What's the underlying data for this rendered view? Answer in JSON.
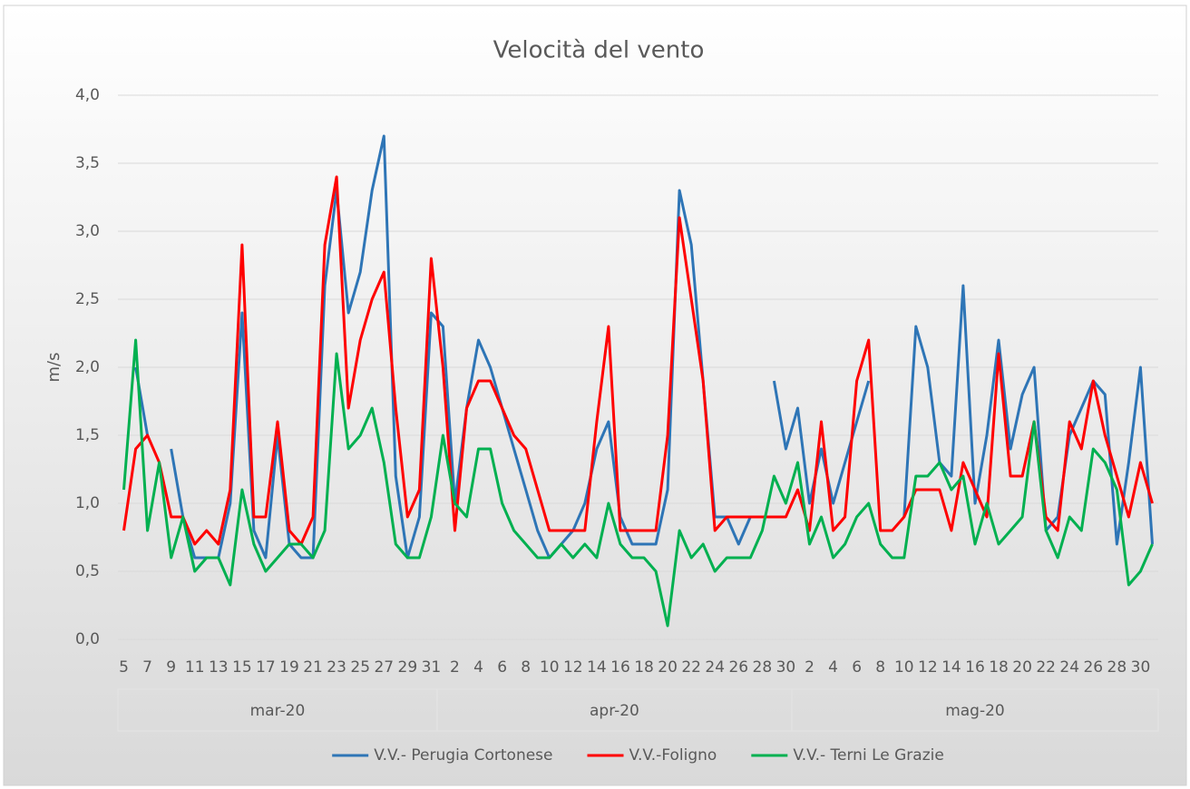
{
  "chart_data": {
    "type": "line",
    "title": "Velocità del vento",
    "y_label": "m/s",
    "categories": [
      "5",
      null,
      "7",
      null,
      "9",
      null,
      "11",
      null,
      "13",
      null,
      "15",
      null,
      "17",
      null,
      "19",
      null,
      "21",
      null,
      "23",
      null,
      "25",
      null,
      "27",
      null,
      "29",
      null,
      "31",
      null,
      "2",
      null,
      "4",
      null,
      "6",
      null,
      "8",
      null,
      "10",
      null,
      "12",
      null,
      "14",
      null,
      "16",
      null,
      "18",
      null,
      "20",
      null,
      "22",
      null,
      "24",
      null,
      "26",
      null,
      "28",
      null,
      "30",
      null,
      "2",
      null,
      "4",
      null,
      "6",
      null,
      "8",
      null,
      "10",
      null,
      "12",
      null,
      "14",
      null,
      "16",
      null,
      "18",
      null,
      "20",
      null,
      "22",
      null,
      "24",
      null,
      "26",
      null,
      "28",
      null,
      "30",
      null
    ],
    "groups": [
      {
        "name": "mar-20",
        "count": 27
      },
      {
        "name": "apr-20",
        "count": 30
      },
      {
        "name": "mag-20",
        "count": 31
      }
    ],
    "ylim": [
      0,
      4
    ],
    "yticks": [
      {
        "value": 0,
        "label": "0,0"
      },
      {
        "value": 0.5,
        "label": "0,5"
      },
      {
        "value": 1,
        "label": "1,0"
      },
      {
        "value": 1.5,
        "label": "1,5"
      },
      {
        "value": 2,
        "label": "2,0"
      },
      {
        "value": 2.5,
        "label": "2,5"
      },
      {
        "value": 3,
        "label": "3,0"
      },
      {
        "value": 3.5,
        "label": "3,5"
      },
      {
        "value": 4,
        "label": "4,0"
      }
    ],
    "grid": true,
    "legend": "bottom",
    "series": [
      {
        "name": "V.V.- Perugia Cortonese",
        "color": "#2e75b6",
        "values": [
          null,
          2.0,
          1.5,
          null,
          1.4,
          0.9,
          0.6,
          0.6,
          0.6,
          1.0,
          2.4,
          0.8,
          0.6,
          1.5,
          0.7,
          0.6,
          0.6,
          2.6,
          3.3,
          2.4,
          2.7,
          3.3,
          3.7,
          1.2,
          0.6,
          0.9,
          2.4,
          2.3,
          1.0,
          1.7,
          2.2,
          2.0,
          1.7,
          1.4,
          1.1,
          0.8,
          0.6,
          0.7,
          0.8,
          1.0,
          1.4,
          1.6,
          0.9,
          0.7,
          0.7,
          0.7,
          1.1,
          3.3,
          2.9,
          1.9,
          0.9,
          0.9,
          0.7,
          0.9,
          null,
          1.9,
          1.4,
          1.7,
          1.0,
          1.4,
          1.0,
          1.3,
          1.6,
          1.9,
          null,
          null,
          0.9,
          2.3,
          2.0,
          1.3,
          1.2,
          2.6,
          1.0,
          1.5,
          2.2,
          1.4,
          1.8,
          2.0,
          0.8,
          0.9,
          1.5,
          1.7,
          1.9,
          1.8,
          0.7,
          1.3,
          2.0,
          0.7
        ]
      },
      {
        "name": "V.V.-Foligno",
        "color": "#ff0000",
        "values": [
          0.8,
          1.4,
          1.5,
          1.3,
          0.9,
          0.9,
          0.7,
          0.8,
          0.7,
          1.1,
          2.9,
          0.9,
          0.9,
          1.6,
          0.8,
          0.7,
          0.9,
          2.9,
          3.4,
          1.7,
          2.2,
          2.5,
          2.7,
          1.7,
          0.9,
          1.1,
          2.8,
          2.0,
          0.8,
          1.7,
          1.9,
          1.9,
          1.7,
          1.5,
          1.4,
          1.1,
          0.8,
          0.8,
          0.8,
          0.8,
          1.6,
          2.3,
          0.8,
          0.8,
          0.8,
          0.8,
          1.5,
          3.1,
          2.5,
          1.9,
          0.8,
          0.9,
          0.9,
          0.9,
          0.9,
          0.9,
          0.9,
          1.1,
          0.8,
          1.6,
          0.8,
          0.9,
          1.9,
          2.2,
          0.8,
          0.8,
          0.9,
          1.1,
          1.1,
          1.1,
          0.8,
          1.3,
          1.1,
          0.9,
          2.1,
          1.2,
          1.2,
          1.6,
          0.9,
          0.8,
          1.6,
          1.4,
          1.9,
          1.5,
          1.2,
          0.9,
          1.3,
          1.0
        ]
      },
      {
        "name": "V.V.- Terni Le Grazie",
        "color": "#00b050",
        "values": [
          1.1,
          2.2,
          0.8,
          1.3,
          0.6,
          0.9,
          0.5,
          0.6,
          0.6,
          0.4,
          1.1,
          0.7,
          0.5,
          0.6,
          0.7,
          0.7,
          0.6,
          0.8,
          2.1,
          1.4,
          1.5,
          1.7,
          1.3,
          0.7,
          0.6,
          0.6,
          0.9,
          1.5,
          1.0,
          0.9,
          1.4,
          1.4,
          1.0,
          0.8,
          0.7,
          0.6,
          0.6,
          0.7,
          0.6,
          0.7,
          0.6,
          1.0,
          0.7,
          0.6,
          0.6,
          0.5,
          0.1,
          0.8,
          0.6,
          0.7,
          0.5,
          0.6,
          0.6,
          0.6,
          0.8,
          1.2,
          1.0,
          1.3,
          0.7,
          0.9,
          0.6,
          0.7,
          0.9,
          1.0,
          0.7,
          0.6,
          0.6,
          1.2,
          1.2,
          1.3,
          1.1,
          1.2,
          0.7,
          1.0,
          0.7,
          0.8,
          0.9,
          1.6,
          0.8,
          0.6,
          0.9,
          0.8,
          1.4,
          1.3,
          1.1,
          0.4,
          0.5,
          0.7
        ]
      }
    ]
  }
}
